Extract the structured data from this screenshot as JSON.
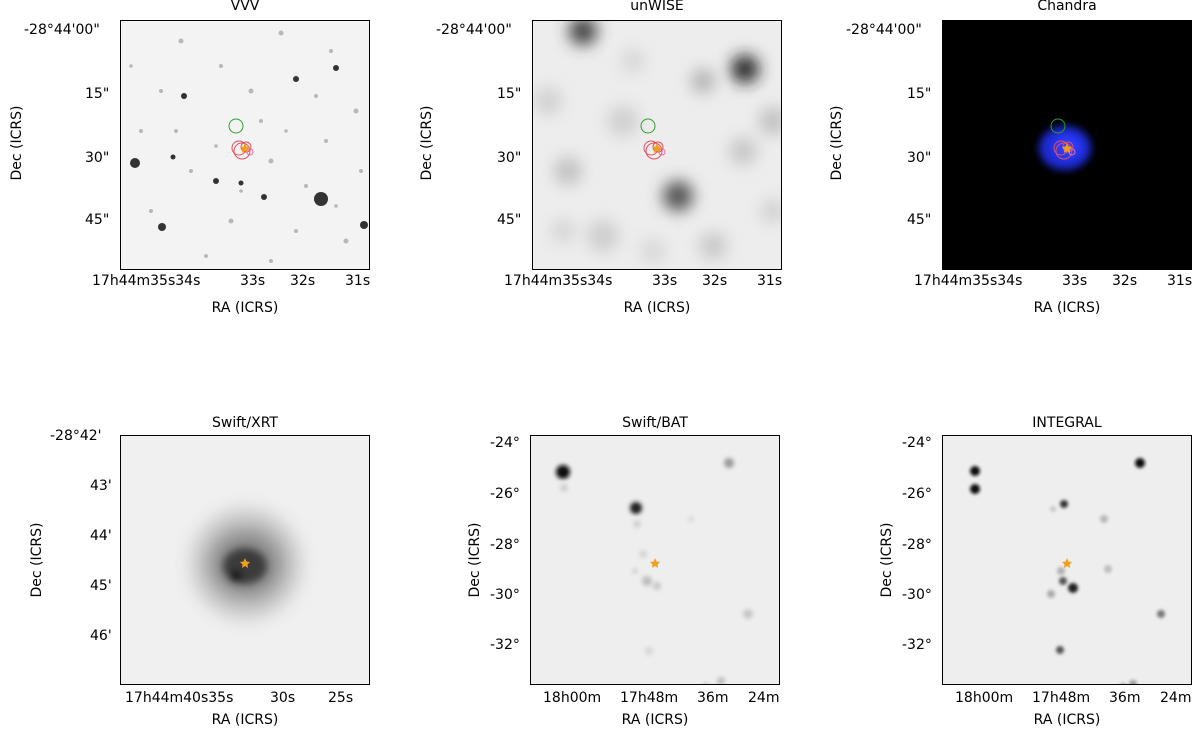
{
  "figure": {
    "panels": [
      {
        "id": "vvv",
        "title": "VVV",
        "xlabel": "RA (ICRS)",
        "ylabel": "Dec (ICRS)",
        "yticks": [
          "-28°44'00\"",
          "15\"",
          "30\"",
          "45\""
        ],
        "xticks": [
          {
            "pre": "17",
            "h": "h",
            "m1": "44",
            "mm": "m",
            "s1": "35",
            "ss": "s",
            "rest": "34",
            "rs": "s"
          },
          {
            "pre": "33",
            "ss": "s"
          },
          {
            "pre": "32",
            "ss": "s"
          },
          {
            "pre": "31",
            "ss": "s"
          }
        ],
        "background": "light",
        "background_color": "#f2f2f2"
      },
      {
        "id": "unwise",
        "title": "unWISE",
        "xlabel": "RA (ICRS)",
        "ylabel": "Dec (ICRS)",
        "background": "blur",
        "background_color": "#efefef"
      },
      {
        "id": "chandra",
        "title": "Chandra",
        "xlabel": "RA (ICRS)",
        "ylabel": "Dec (ICRS)",
        "background": "dark",
        "background_color": "#000000"
      },
      {
        "id": "swift-xrt",
        "title": "Swift/XRT",
        "xlabel": "RA (ICRS)",
        "ylabel": "Dec (ICRS)",
        "yticks": [
          "-28°42'",
          "43'",
          "44'",
          "45'",
          "46'"
        ],
        "xticks_text": [
          "17h44m40s35s",
          "30s",
          "25s"
        ],
        "background_color": "#efefef"
      },
      {
        "id": "swift-bat",
        "title": "Swift/BAT",
        "xlabel": "RA (ICRS)",
        "ylabel": "Dec (ICRS)",
        "yticks": [
          "-24°",
          "-26°",
          "-28°",
          "-30°",
          "-32°"
        ],
        "xticks_text": [
          "18h00m",
          "17h48m",
          "36m",
          "24m"
        ],
        "background_color": "#eeeeee"
      },
      {
        "id": "integral",
        "title": "INTEGRAL",
        "xlabel": "RA (ICRS)",
        "ylabel": "Dec (ICRS)",
        "yticks": [
          "-24°",
          "-26°",
          "-28°",
          "-30°",
          "-32°"
        ],
        "xticks_text": [
          "18h00m",
          "17h48m",
          "36m",
          "24m"
        ],
        "background_color": "#eeeeee"
      }
    ],
    "top_y_ticks": [
      "-28°44'00\"",
      "15\"",
      "30\"",
      "45\""
    ],
    "top_x_ticks": [
      "17h44m35s34s",
      "33s",
      "32s",
      "31s"
    ],
    "marker_colors": {
      "green_circle": "#2ca02c",
      "red_circle": "#e05060",
      "pink_circle": "#e070a0",
      "star": "#f0a020",
      "chandra_blob": "#1a2aff"
    }
  }
}
